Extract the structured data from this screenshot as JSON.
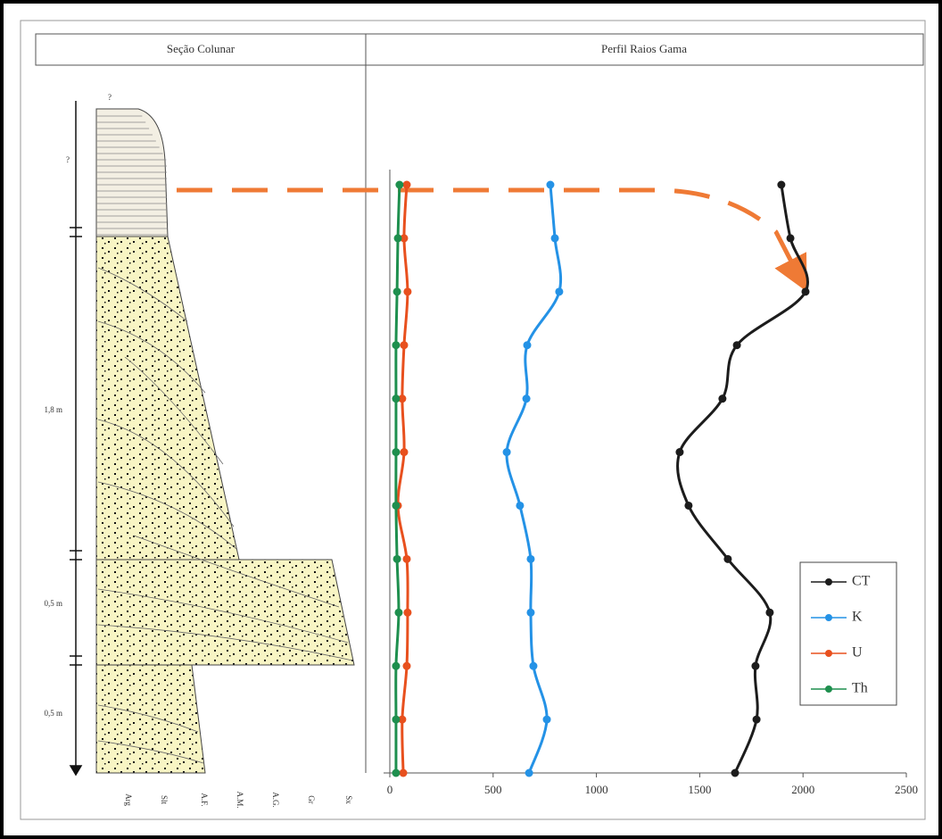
{
  "section_header": "Seção Colunar",
  "column_scale_labels": [
    "?",
    "?",
    "1,8 m",
    "0,5 m",
    "0,5 m"
  ],
  "grain_size_labels": [
    "Arg",
    "Slt",
    "A.F.",
    "A.M.",
    "A.G.",
    "Gr",
    "Sx"
  ],
  "chart_data": {
    "type": "line",
    "title": "Perfil Raios Gama",
    "categories": [
      null,
      null,
      null,
      null,
      null,
      null,
      null,
      null,
      null,
      null,
      null,
      null
    ],
    "xlim": [
      0,
      2500
    ],
    "xticks": [
      0,
      500,
      1000,
      1500,
      2000,
      2500
    ],
    "grid": false,
    "legend": "bottom-right",
    "series": [
      {
        "name": "CT",
        "color": "#1c1c1c",
        "values": [
          1895,
          1939,
          2012,
          1680,
          1610,
          1403,
          1446,
          1636,
          1839,
          1770,
          1775,
          1671
        ]
      },
      {
        "name": "K",
        "color": "#2492e6",
        "values": [
          777,
          799,
          820,
          665,
          661,
          566,
          630,
          682,
          682,
          695,
          760,
          674
        ]
      },
      {
        "name": "U",
        "color": "#e8501e",
        "values": [
          82,
          69,
          86,
          69,
          60,
          69,
          39,
          82,
          86,
          82,
          60,
          65
        ]
      },
      {
        "name": "Th",
        "color": "#1e8f4e",
        "values": [
          47,
          39,
          35,
          30,
          30,
          30,
          30,
          35,
          43,
          30,
          30,
          30
        ]
      }
    ]
  }
}
